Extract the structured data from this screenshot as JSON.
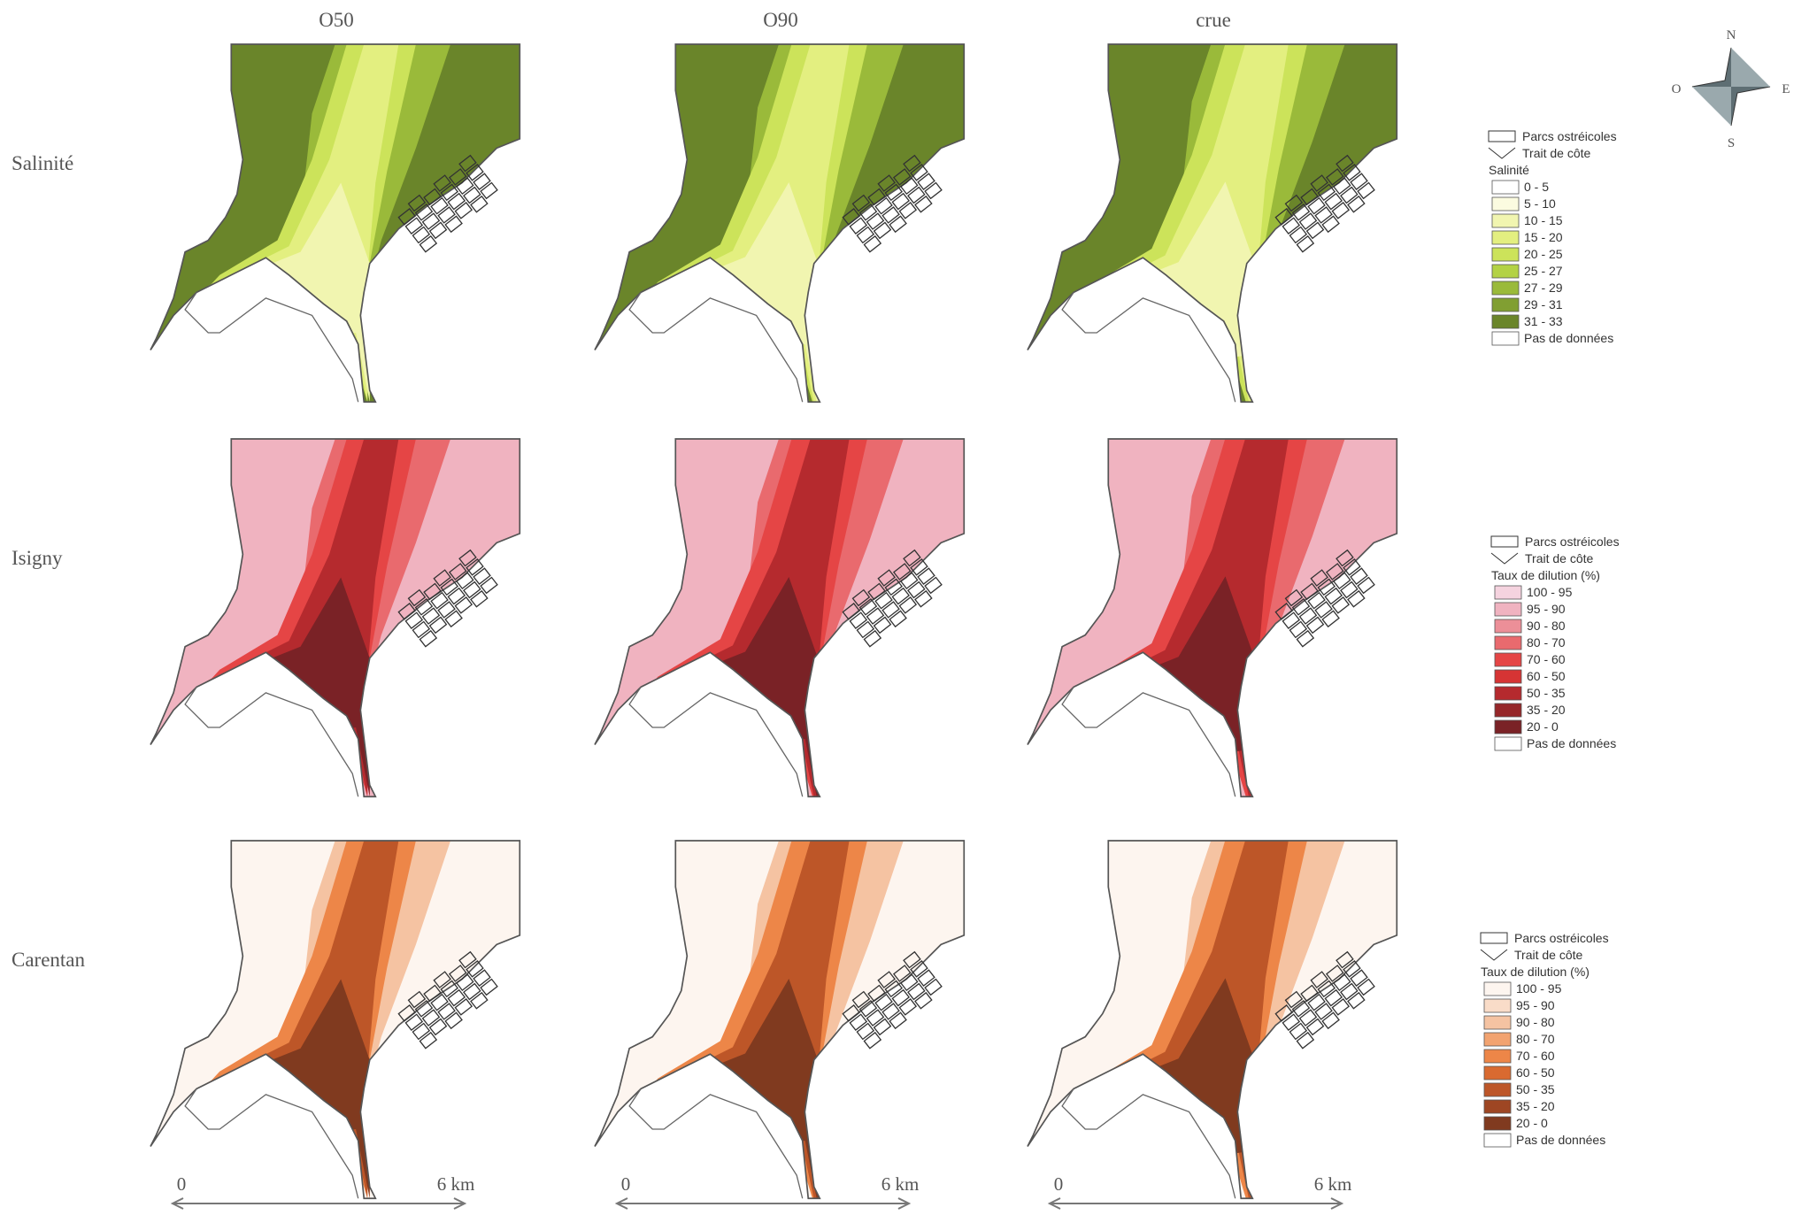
{
  "columns": [
    "O50",
    "O90",
    "crue"
  ],
  "rows": [
    "Salinité",
    "Isigny",
    "Carentan"
  ],
  "legends": [
    {
      "oyster_parks": "Parcs ostréicoles",
      "coastline": "Trait de côte",
      "title": "Salinité",
      "classes": [
        {
          "label": "0 - 5",
          "color": "#ffffff"
        },
        {
          "label": "5 - 10",
          "color": "#fbfbe0"
        },
        {
          "label": "10 - 15",
          "color": "#f1f5b0"
        },
        {
          "label": "15 - 20",
          "color": "#e3ef80"
        },
        {
          "label": "20 - 25",
          "color": "#cce35a"
        },
        {
          "label": "25 - 27",
          "color": "#b3d245"
        },
        {
          "label": "27 - 29",
          "color": "#9aba3a"
        },
        {
          "label": "29 - 31",
          "color": "#819f32"
        },
        {
          "label": "31 - 33",
          "color": "#6a852a"
        }
      ],
      "no_data": "Pas de données"
    },
    {
      "oyster_parks": "Parcs ostréicoles",
      "coastline": "Trait de côte",
      "title": "Taux de dilution (%)",
      "classes": [
        {
          "label": "100 - 95",
          "color": "#f5d3df"
        },
        {
          "label": "95 - 90",
          "color": "#f0b3c0"
        },
        {
          "label": "90 - 80",
          "color": "#ec8f98"
        },
        {
          "label": "80 - 70",
          "color": "#e96a6e"
        },
        {
          "label": "70 - 60",
          "color": "#e54545"
        },
        {
          "label": "60 - 50",
          "color": "#d63434"
        },
        {
          "label": "50 - 35",
          "color": "#b52a2e"
        },
        {
          "label": "35 - 20",
          "color": "#962729"
        },
        {
          "label": "20 - 0",
          "color": "#7a2226"
        }
      ],
      "no_data": "Pas de données"
    },
    {
      "oyster_parks": "Parcs ostréicoles",
      "coastline": "Trait de côte",
      "title": "Taux de dilution (%)",
      "classes": [
        {
          "label": "100 - 95",
          "color": "#fdf5ef"
        },
        {
          "label": "95 - 90",
          "color": "#f9dcc8"
        },
        {
          "label": "90 - 80",
          "color": "#f5c3a2"
        },
        {
          "label": "80 - 70",
          "color": "#f2a370"
        },
        {
          "label": "70 - 60",
          "color": "#ed8648"
        },
        {
          "label": "60 - 50",
          "color": "#d96a30"
        },
        {
          "label": "50 - 35",
          "color": "#bd5628"
        },
        {
          "label": "35 - 20",
          "color": "#9e4623"
        },
        {
          "label": "20 - 0",
          "color": "#803a1f"
        }
      ],
      "no_data": "Pas de données"
    }
  ],
  "compass": {
    "north": "N",
    "south": "S",
    "east": "E",
    "west": "O"
  },
  "scale": {
    "start": "0",
    "end": "6 km"
  }
}
